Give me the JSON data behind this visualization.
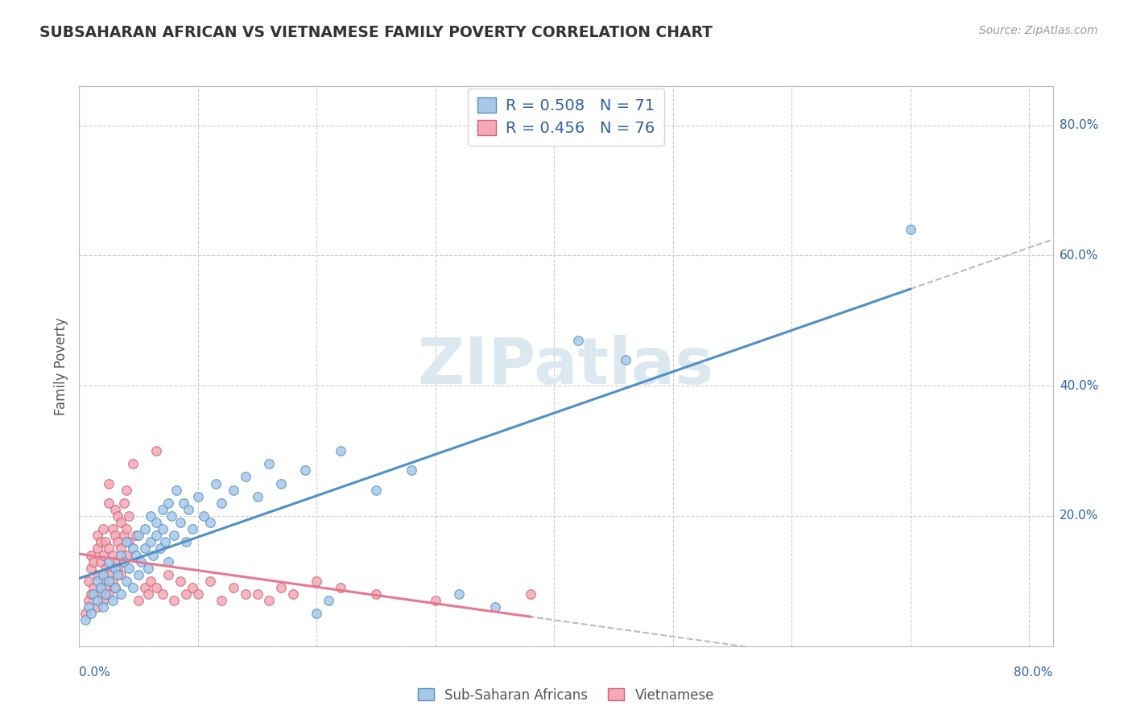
{
  "title": "SUBSAHARAN AFRICAN VS VIETNAMESE FAMILY POVERTY CORRELATION CHART",
  "source_text": "Source: ZipAtlas.com",
  "ylabel": "Family Poverty",
  "legend_label1": "Sub-Saharan Africans",
  "legend_label2": "Vietnamese",
  "r1": "0.508",
  "n1": "71",
  "r2": "0.456",
  "n2": "76",
  "color_blue": "#a8c8e8",
  "color_pink": "#f4a8b8",
  "color_blue_edge": "#5090c0",
  "color_pink_edge": "#d06070",
  "color_text_blue": "#3060a0",
  "color_grid": "#cccccc",
  "color_trendline_gray": "#bbbbbb",
  "watermark_color": "#dce8f0",
  "blue_trendline_color": "#5090c8",
  "pink_trendline_color": "#e87890",
  "blue_scatter": [
    [
      0.005,
      0.04
    ],
    [
      0.008,
      0.06
    ],
    [
      0.01,
      0.05
    ],
    [
      0.012,
      0.08
    ],
    [
      0.015,
      0.07
    ],
    [
      0.015,
      0.1
    ],
    [
      0.018,
      0.09
    ],
    [
      0.02,
      0.06
    ],
    [
      0.02,
      0.11
    ],
    [
      0.022,
      0.08
    ],
    [
      0.025,
      0.1
    ],
    [
      0.025,
      0.13
    ],
    [
      0.028,
      0.07
    ],
    [
      0.03,
      0.12
    ],
    [
      0.03,
      0.09
    ],
    [
      0.032,
      0.11
    ],
    [
      0.035,
      0.08
    ],
    [
      0.035,
      0.14
    ],
    [
      0.038,
      0.13
    ],
    [
      0.04,
      0.1
    ],
    [
      0.04,
      0.16
    ],
    [
      0.042,
      0.12
    ],
    [
      0.045,
      0.15
    ],
    [
      0.045,
      0.09
    ],
    [
      0.048,
      0.14
    ],
    [
      0.05,
      0.17
    ],
    [
      0.05,
      0.11
    ],
    [
      0.052,
      0.13
    ],
    [
      0.055,
      0.18
    ],
    [
      0.055,
      0.15
    ],
    [
      0.058,
      0.12
    ],
    [
      0.06,
      0.16
    ],
    [
      0.06,
      0.2
    ],
    [
      0.062,
      0.14
    ],
    [
      0.065,
      0.19
    ],
    [
      0.065,
      0.17
    ],
    [
      0.068,
      0.15
    ],
    [
      0.07,
      0.21
    ],
    [
      0.07,
      0.18
    ],
    [
      0.072,
      0.16
    ],
    [
      0.075,
      0.22
    ],
    [
      0.075,
      0.13
    ],
    [
      0.078,
      0.2
    ],
    [
      0.08,
      0.17
    ],
    [
      0.082,
      0.24
    ],
    [
      0.085,
      0.19
    ],
    [
      0.088,
      0.22
    ],
    [
      0.09,
      0.16
    ],
    [
      0.092,
      0.21
    ],
    [
      0.095,
      0.18
    ],
    [
      0.1,
      0.23
    ],
    [
      0.105,
      0.2
    ],
    [
      0.11,
      0.19
    ],
    [
      0.115,
      0.25
    ],
    [
      0.12,
      0.22
    ],
    [
      0.13,
      0.24
    ],
    [
      0.14,
      0.26
    ],
    [
      0.15,
      0.23
    ],
    [
      0.16,
      0.28
    ],
    [
      0.17,
      0.25
    ],
    [
      0.19,
      0.27
    ],
    [
      0.2,
      0.05
    ],
    [
      0.21,
      0.07
    ],
    [
      0.22,
      0.3
    ],
    [
      0.25,
      0.24
    ],
    [
      0.28,
      0.27
    ],
    [
      0.32,
      0.08
    ],
    [
      0.35,
      0.06
    ],
    [
      0.42,
      0.47
    ],
    [
      0.46,
      0.44
    ],
    [
      0.7,
      0.64
    ]
  ],
  "pink_scatter": [
    [
      0.005,
      0.05
    ],
    [
      0.008,
      0.07
    ],
    [
      0.008,
      0.1
    ],
    [
      0.01,
      0.08
    ],
    [
      0.01,
      0.12
    ],
    [
      0.01,
      0.14
    ],
    [
      0.012,
      0.09
    ],
    [
      0.012,
      0.13
    ],
    [
      0.015,
      0.06
    ],
    [
      0.015,
      0.11
    ],
    [
      0.015,
      0.15
    ],
    [
      0.015,
      0.17
    ],
    [
      0.018,
      0.08
    ],
    [
      0.018,
      0.13
    ],
    [
      0.018,
      0.16
    ],
    [
      0.02,
      0.07
    ],
    [
      0.02,
      0.1
    ],
    [
      0.02,
      0.14
    ],
    [
      0.02,
      0.18
    ],
    [
      0.022,
      0.09
    ],
    [
      0.022,
      0.12
    ],
    [
      0.022,
      0.16
    ],
    [
      0.025,
      0.08
    ],
    [
      0.025,
      0.11
    ],
    [
      0.025,
      0.15
    ],
    [
      0.025,
      0.22
    ],
    [
      0.025,
      0.25
    ],
    [
      0.028,
      0.1
    ],
    [
      0.028,
      0.14
    ],
    [
      0.028,
      0.18
    ],
    [
      0.03,
      0.09
    ],
    [
      0.03,
      0.13
    ],
    [
      0.03,
      0.17
    ],
    [
      0.03,
      0.21
    ],
    [
      0.032,
      0.12
    ],
    [
      0.032,
      0.16
    ],
    [
      0.032,
      0.2
    ],
    [
      0.035,
      0.11
    ],
    [
      0.035,
      0.15
    ],
    [
      0.035,
      0.19
    ],
    [
      0.038,
      0.13
    ],
    [
      0.038,
      0.17
    ],
    [
      0.038,
      0.22
    ],
    [
      0.04,
      0.14
    ],
    [
      0.04,
      0.18
    ],
    [
      0.04,
      0.24
    ],
    [
      0.042,
      0.16
    ],
    [
      0.042,
      0.2
    ],
    [
      0.045,
      0.28
    ],
    [
      0.048,
      0.17
    ],
    [
      0.05,
      0.07
    ],
    [
      0.055,
      0.09
    ],
    [
      0.058,
      0.08
    ],
    [
      0.06,
      0.1
    ],
    [
      0.065,
      0.09
    ],
    [
      0.065,
      0.3
    ],
    [
      0.07,
      0.08
    ],
    [
      0.075,
      0.11
    ],
    [
      0.08,
      0.07
    ],
    [
      0.085,
      0.1
    ],
    [
      0.09,
      0.08
    ],
    [
      0.095,
      0.09
    ],
    [
      0.1,
      0.08
    ],
    [
      0.11,
      0.1
    ],
    [
      0.12,
      0.07
    ],
    [
      0.13,
      0.09
    ],
    [
      0.14,
      0.08
    ],
    [
      0.15,
      0.08
    ],
    [
      0.16,
      0.07
    ],
    [
      0.17,
      0.09
    ],
    [
      0.18,
      0.08
    ],
    [
      0.2,
      0.1
    ],
    [
      0.22,
      0.09
    ],
    [
      0.25,
      0.08
    ],
    [
      0.3,
      0.07
    ],
    [
      0.38,
      0.08
    ]
  ],
  "xlim": [
    0.0,
    0.82
  ],
  "ylim": [
    0.0,
    0.86
  ],
  "grid_yticks": [
    0.0,
    0.2,
    0.4,
    0.6,
    0.8
  ],
  "grid_xticks": [
    0.0,
    0.1,
    0.2,
    0.3,
    0.4,
    0.5,
    0.6,
    0.7,
    0.8
  ],
  "right_ytick_vals": [
    0.2,
    0.4,
    0.6,
    0.8
  ],
  "right_ytick_labels": [
    "20.0%",
    "40.0%",
    "60.0%",
    "80.0%"
  ]
}
